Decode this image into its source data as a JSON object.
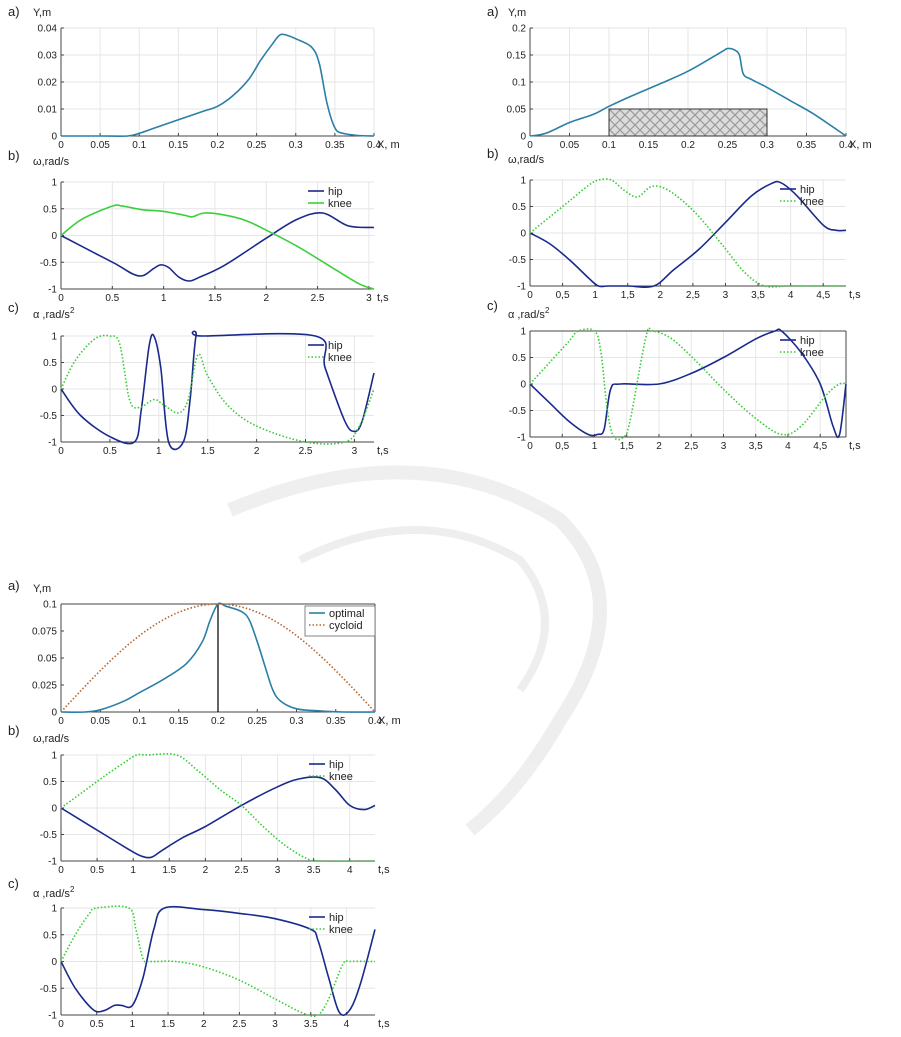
{
  "colors": {
    "hip": "#1a2a8c",
    "knee": "#33cc33",
    "knee_solid": "#3ccf3c",
    "path": "#2a7fa6",
    "cycloid": "#b8632a",
    "axis": "#444444"
  },
  "chart_data": [
    {
      "id": "A-a",
      "panel_label": "a)",
      "type": "line",
      "ylabel": "Y,m",
      "xlabel": "X, m",
      "xlim": [
        0,
        0.4
      ],
      "ylim": [
        0,
        0.04
      ],
      "xticks": [
        "0",
        "0.05",
        "0.1",
        "0.15",
        "0.2",
        "0.25",
        "0.3",
        "0.35",
        "0.4"
      ],
      "yticks": [
        "0",
        "0.01",
        "0.02",
        "0.03",
        "0.04"
      ],
      "xtick_values": [
        0,
        0.05,
        0.1,
        0.15,
        0.2,
        0.25,
        0.3,
        0.35,
        0.4
      ],
      "ytick_values": [
        0,
        0.01,
        0.02,
        0.03,
        0.04
      ],
      "grid": true,
      "series": [
        {
          "key": "path",
          "style": "solid",
          "x": [
            0,
            0.05,
            0.085,
            0.1,
            0.12,
            0.15,
            0.18,
            0.2,
            0.22,
            0.24,
            0.255,
            0.27,
            0.28,
            0.29,
            0.3,
            0.32,
            0.33,
            0.34,
            0.35,
            0.36,
            0.38,
            0.4
          ],
          "y": [
            0,
            0,
            0,
            0.001,
            0.003,
            0.006,
            0.009,
            0.011,
            0.015,
            0.021,
            0.028,
            0.034,
            0.0375,
            0.0372,
            0.036,
            0.033,
            0.027,
            0.012,
            0.003,
            0.001,
            0.0002,
            0
          ]
        }
      ]
    },
    {
      "id": "A-b",
      "panel_label": "b)",
      "type": "line",
      "ylabel": "ω,rad/s",
      "xlabel": "t,s",
      "xlim": [
        0,
        3.05
      ],
      "ylim": [
        -1,
        1
      ],
      "xticks": [
        "0",
        "0.5",
        "1",
        "1.5",
        "2",
        "2.5",
        "3"
      ],
      "yticks": [
        "-1",
        "-0.5",
        "0",
        "0.5",
        "1"
      ],
      "xtick_values": [
        0,
        0.5,
        1,
        1.5,
        2,
        2.5,
        3
      ],
      "ytick_values": [
        -1,
        -0.5,
        0,
        0.5,
        1
      ],
      "grid": true,
      "legend": "top-right",
      "series": [
        {
          "key": "hip",
          "name": "hip",
          "style": "solid",
          "x": [
            0,
            0.3,
            0.55,
            0.7,
            0.8,
            0.9,
            0.97,
            1.05,
            1.15,
            1.25,
            1.35,
            1.6,
            2.0,
            2.3,
            2.55,
            2.8,
            3.05
          ],
          "y": [
            0,
            -0.3,
            -0.55,
            -0.72,
            -0.75,
            -0.62,
            -0.55,
            -0.6,
            -0.78,
            -0.85,
            -0.78,
            -0.55,
            -0.05,
            0.3,
            0.42,
            0.18,
            0.15
          ]
        },
        {
          "key": "knee_solid",
          "name": "knee",
          "style": "solid",
          "x": [
            0,
            0.2,
            0.5,
            0.6,
            0.8,
            1.0,
            1.2,
            1.28,
            1.4,
            1.6,
            1.8,
            2.0,
            2.3,
            2.6,
            2.9,
            3.05
          ],
          "y": [
            0,
            0.3,
            0.55,
            0.55,
            0.48,
            0.45,
            0.38,
            0.35,
            0.42,
            0.38,
            0.28,
            0.1,
            -0.2,
            -0.55,
            -0.9,
            -1.0
          ]
        }
      ]
    },
    {
      "id": "A-c",
      "panel_label": "c)",
      "type": "line",
      "ylabel": "α ,rad/s",
      "ylabel_sup": "2",
      "xlabel": "t,s",
      "xlim": [
        0,
        3.2
      ],
      "ylim": [
        -1,
        1
      ],
      "xticks": [
        "0",
        "0.5",
        "1",
        "1.5",
        "2",
        "2.5",
        "3"
      ],
      "yticks": [
        "-1",
        "-0.5",
        "0",
        "0.5",
        "1"
      ],
      "xtick_values": [
        0,
        0.5,
        1,
        1.5,
        2,
        2.5,
        3
      ],
      "ytick_values": [
        -1,
        -0.5,
        0,
        0.5,
        1
      ],
      "grid": true,
      "legend": "top-right",
      "series": [
        {
          "key": "hip",
          "name": "hip",
          "style": "solid",
          "x": [
            0,
            0.2,
            0.5,
            0.75,
            0.82,
            0.9,
            0.95,
            1.02,
            1.1,
            1.25,
            1.32,
            1.38,
            1.45,
            2.6,
            2.7,
            2.9,
            3.0,
            3.08,
            3.2
          ],
          "y": [
            0,
            -0.5,
            -0.9,
            -1.0,
            -0.4,
            0.8,
            1.0,
            0.4,
            -1.0,
            -1.0,
            -0.2,
            1.0,
            1.0,
            1.0,
            0.4,
            -0.6,
            -0.8,
            -0.6,
            0.3
          ]
        },
        {
          "key": "knee",
          "name": "knee",
          "style": "dotted",
          "x": [
            0,
            0.15,
            0.35,
            0.5,
            0.6,
            0.7,
            0.8,
            0.95,
            1.05,
            1.2,
            1.3,
            1.4,
            1.5,
            1.7,
            2.0,
            2.5,
            2.9,
            3.05,
            3.2
          ],
          "y": [
            0,
            0.55,
            0.95,
            1.0,
            0.85,
            -0.2,
            -0.35,
            -0.2,
            -0.3,
            -0.45,
            -0.2,
            0.65,
            0.25,
            -0.3,
            -0.7,
            -1.0,
            -1.0,
            -0.7,
            0.0
          ]
        }
      ]
    },
    {
      "id": "B-a",
      "panel_label": "a)",
      "type": "line",
      "ylabel": "Y,m",
      "xlabel": "X, m",
      "xlim": [
        0,
        0.4
      ],
      "ylim": [
        0,
        0.2
      ],
      "xticks": [
        "0",
        "0.05",
        "0.1",
        "0.15",
        "0.2",
        "0.25",
        "0.3",
        "0.35",
        "0.4"
      ],
      "yticks": [
        "0",
        "0.05",
        "0.1",
        "0.15",
        "0.2"
      ],
      "xtick_values": [
        0,
        0.05,
        0.1,
        0.15,
        0.2,
        0.25,
        0.3,
        0.35,
        0.4
      ],
      "ytick_values": [
        0,
        0.05,
        0.1,
        0.15,
        0.2
      ],
      "grid": true,
      "obstacle": {
        "x0": 0.1,
        "x1": 0.3,
        "y0": 0,
        "y1": 0.05
      },
      "series": [
        {
          "key": "path",
          "style": "solid",
          "x": [
            0,
            0.02,
            0.05,
            0.08,
            0.1,
            0.13,
            0.17,
            0.2,
            0.23,
            0.245,
            0.25,
            0.258,
            0.265,
            0.27,
            0.28,
            0.3,
            0.33,
            0.36,
            0.4
          ],
          "y": [
            0,
            0.005,
            0.025,
            0.04,
            0.055,
            0.075,
            0.1,
            0.12,
            0.145,
            0.158,
            0.162,
            0.16,
            0.15,
            0.115,
            0.105,
            0.09,
            0.065,
            0.04,
            0
          ]
        }
      ]
    },
    {
      "id": "B-b",
      "panel_label": "b)",
      "type": "line",
      "ylabel": "ω,rad/s",
      "xlabel": "t,s",
      "xlim": [
        0,
        4.85
      ],
      "ylim": [
        -1,
        1
      ],
      "xticks": [
        "0",
        "0,5",
        "1",
        "1,5",
        "2",
        "2,5",
        "3",
        "3,5",
        "4",
        "4,5"
      ],
      "yticks": [
        "-1",
        "-0.5",
        "0",
        "0.5",
        "1"
      ],
      "xtick_values": [
        0,
        0.5,
        1,
        1.5,
        2,
        2.5,
        3,
        3.5,
        4,
        4.5
      ],
      "ytick_values": [
        -1,
        -0.5,
        0,
        0.5,
        1
      ],
      "grid": true,
      "legend": "top-right",
      "series": [
        {
          "key": "hip",
          "name": "hip",
          "style": "solid",
          "x": [
            0,
            0.3,
            0.6,
            0.9,
            1.05,
            1.2,
            1.5,
            1.9,
            2.2,
            2.6,
            3.0,
            3.4,
            3.7,
            3.85,
            4.1,
            4.5,
            4.7,
            4.85
          ],
          "y": [
            0,
            -0.2,
            -0.5,
            -0.85,
            -1.0,
            -1.0,
            -1.0,
            -1.0,
            -0.7,
            -0.3,
            0.2,
            0.7,
            0.93,
            0.95,
            0.7,
            0.15,
            0.05,
            0.05
          ]
        },
        {
          "key": "knee",
          "name": "knee",
          "style": "dotted",
          "x": [
            0,
            0.3,
            0.6,
            0.9,
            1.05,
            1.25,
            1.45,
            1.65,
            1.85,
            2.05,
            2.3,
            2.6,
            3.0,
            3.3,
            3.6,
            4.0,
            4.85
          ],
          "y": [
            0,
            0.3,
            0.6,
            0.9,
            1.0,
            1.0,
            0.8,
            0.68,
            0.87,
            0.85,
            0.65,
            0.3,
            -0.3,
            -0.75,
            -1.0,
            -1.0,
            -1.0
          ]
        }
      ]
    },
    {
      "id": "B-c",
      "panel_label": "c)",
      "type": "line",
      "ylabel": "α ,rad/s",
      "ylabel_sup": "2",
      "xlabel": "t,s",
      "xlim": [
        0,
        4.9
      ],
      "ylim": [
        -1,
        1
      ],
      "xticks": [
        "0",
        "0,5",
        "1",
        "1,5",
        "2",
        "2,5",
        "3",
        "3,5",
        "4",
        "4,5"
      ],
      "yticks": [
        "-1",
        "-0.5",
        "0",
        "0.5",
        "1"
      ],
      "xtick_values": [
        0,
        0.5,
        1,
        1.5,
        2,
        2.5,
        3,
        3.5,
        4,
        4.5
      ],
      "ytick_values": [
        -1,
        -0.5,
        0,
        0.5,
        1
      ],
      "grid": true,
      "legend": "top-right",
      "series": [
        {
          "key": "hip",
          "name": "hip",
          "style": "solid",
          "x": [
            0,
            0.3,
            0.6,
            0.9,
            1.05,
            1.15,
            1.25,
            1.4,
            2.0,
            2.5,
            3.0,
            3.5,
            3.8,
            3.9,
            4.2,
            4.5,
            4.7,
            4.8,
            4.9
          ],
          "y": [
            0,
            -0.35,
            -0.7,
            -0.95,
            -0.95,
            -0.85,
            -0.1,
            0.0,
            0.0,
            0.2,
            0.5,
            0.85,
            1.0,
            1.0,
            0.6,
            0.0,
            -0.8,
            -0.95,
            0.0
          ]
        },
        {
          "key": "knee",
          "name": "knee",
          "style": "dotted",
          "x": [
            0,
            0.3,
            0.6,
            0.75,
            1.0,
            1.1,
            1.2,
            1.3,
            1.45,
            1.55,
            1.8,
            1.9,
            2.2,
            2.6,
            3.0,
            3.5,
            3.9,
            4.2,
            4.6,
            4.8,
            4.9
          ],
          "y": [
            0,
            0.4,
            0.8,
            1.0,
            1.0,
            0.6,
            -0.5,
            -1.0,
            -1.0,
            -0.7,
            0.9,
            1.0,
            0.85,
            0.4,
            -0.1,
            -0.65,
            -0.95,
            -0.8,
            -0.2,
            0.0,
            0.0
          ]
        }
      ]
    },
    {
      "id": "C-a",
      "panel_label": "a)",
      "type": "line",
      "ylabel": "Y,m",
      "xlabel": "X, m",
      "xlim": [
        0,
        0.4
      ],
      "ylim": [
        0,
        0.1
      ],
      "xticks": [
        "0",
        "0.05",
        "0.1",
        "0.15",
        "0.2",
        "0.25",
        "0.3",
        "0.35",
        "0.4"
      ],
      "yticks": [
        "0",
        "0.025",
        "0.05",
        "0.075",
        "0.1"
      ],
      "xtick_values": [
        0,
        0.05,
        0.1,
        0.15,
        0.2,
        0.25,
        0.3,
        0.35,
        0.4
      ],
      "ytick_values": [
        0,
        0.025,
        0.05,
        0.075,
        0.1
      ],
      "grid": false,
      "legend": "top-right",
      "vline_x": 0.2,
      "series": [
        {
          "key": "path",
          "name": "optimal",
          "style": "solid",
          "x": [
            0,
            0.03,
            0.05,
            0.08,
            0.1,
            0.13,
            0.16,
            0.18,
            0.19,
            0.2,
            0.21,
            0.23,
            0.24,
            0.25,
            0.26,
            0.27,
            0.28,
            0.3,
            0.33,
            0.36,
            0.4
          ],
          "y": [
            0,
            0,
            0.002,
            0.01,
            0.018,
            0.03,
            0.045,
            0.065,
            0.085,
            0.1,
            0.098,
            0.093,
            0.085,
            0.065,
            0.042,
            0.02,
            0.01,
            0.003,
            0.001,
            0,
            0
          ]
        },
        {
          "key": "cycloid",
          "name": "cycloid",
          "style": "dotted",
          "func": "sine_arch",
          "x": [
            0,
            0.4
          ],
          "y": [
            0,
            0.1
          ]
        }
      ]
    },
    {
      "id": "C-b",
      "panel_label": "b)",
      "type": "line",
      "ylabel": "ω,rad/s",
      "xlabel": "t,s",
      "xlim": [
        0,
        4.35
      ],
      "ylim": [
        -1,
        1
      ],
      "xticks": [
        "0",
        "0.5",
        "1",
        "1.5",
        "2",
        "2.5",
        "3",
        "3.5",
        "4"
      ],
      "yticks": [
        "-1",
        "-0.5",
        "0",
        "0.5",
        "1"
      ],
      "xtick_values": [
        0,
        0.5,
        1,
        1.5,
        2,
        2.5,
        3,
        3.5,
        4
      ],
      "ytick_values": [
        -1,
        -0.5,
        0,
        0.5,
        1
      ],
      "grid": true,
      "legend": "top-right",
      "series": [
        {
          "key": "hip",
          "name": "hip",
          "style": "solid",
          "x": [
            0,
            0.3,
            0.6,
            0.9,
            1.1,
            1.25,
            1.4,
            1.7,
            2.0,
            2.5,
            3.0,
            3.3,
            3.6,
            3.8,
            4.0,
            4.2,
            4.35
          ],
          "y": [
            0,
            -0.25,
            -0.5,
            -0.75,
            -0.9,
            -0.93,
            -0.8,
            -0.55,
            -0.35,
            0.05,
            0.4,
            0.55,
            0.57,
            0.35,
            0.05,
            -0.03,
            0.05
          ]
        },
        {
          "key": "knee",
          "name": "knee",
          "style": "dotted",
          "x": [
            0,
            0.3,
            0.6,
            0.9,
            1.05,
            1.2,
            1.6,
            1.9,
            2.2,
            2.5,
            2.8,
            3.1,
            3.4,
            3.6,
            4.35
          ],
          "y": [
            0,
            0.3,
            0.6,
            0.88,
            1.0,
            1.0,
            1.0,
            0.7,
            0.35,
            0.05,
            -0.35,
            -0.7,
            -0.95,
            -1.0,
            -1.0
          ]
        }
      ]
    },
    {
      "id": "C-c",
      "panel_label": "c)",
      "type": "line",
      "ylabel": "α ,rad/s",
      "ylabel_sup": "2",
      "xlabel": "t,s",
      "xlim": [
        0,
        4.4
      ],
      "ylim": [
        -1,
        1
      ],
      "xticks": [
        "0",
        "0.5",
        "1",
        "1.5",
        "2",
        "2.5",
        "3",
        "3.5",
        "4"
      ],
      "yticks": [
        "-1",
        "-0.5",
        "0",
        "0.5",
        "1"
      ],
      "xtick_values": [
        0,
        0.5,
        1,
        1.5,
        2,
        2.5,
        3,
        3.5,
        4
      ],
      "ytick_values": [
        -1,
        -0.5,
        0,
        0.5,
        1
      ],
      "grid": true,
      "legend": "top-right",
      "series": [
        {
          "key": "hip",
          "name": "hip",
          "style": "solid",
          "x": [
            0,
            0.2,
            0.45,
            0.6,
            0.75,
            0.85,
            1.0,
            1.15,
            1.3,
            1.45,
            2.0,
            2.5,
            3.0,
            3.5,
            3.6,
            3.75,
            3.9,
            4.05,
            4.2,
            4.4
          ],
          "y": [
            0,
            -0.5,
            -0.9,
            -0.92,
            -0.82,
            -0.82,
            -0.82,
            -0.3,
            0.6,
            1.0,
            0.97,
            0.9,
            0.8,
            0.6,
            0.4,
            -0.3,
            -0.95,
            -0.9,
            -0.4,
            0.6
          ]
        },
        {
          "key": "knee",
          "name": "knee",
          "style": "dotted",
          "x": [
            0,
            0.2,
            0.4,
            0.5,
            0.95,
            1.05,
            1.15,
            1.25,
            1.6,
            2.0,
            2.5,
            3.0,
            3.4,
            3.6,
            3.75,
            3.95,
            4.05,
            4.4
          ],
          "y": [
            0,
            0.5,
            0.9,
            1.0,
            1.0,
            0.6,
            0.05,
            0.0,
            0.0,
            -0.1,
            -0.35,
            -0.7,
            -0.97,
            -1.0,
            -0.7,
            -0.05,
            0.0,
            0.0
          ]
        }
      ]
    }
  ]
}
